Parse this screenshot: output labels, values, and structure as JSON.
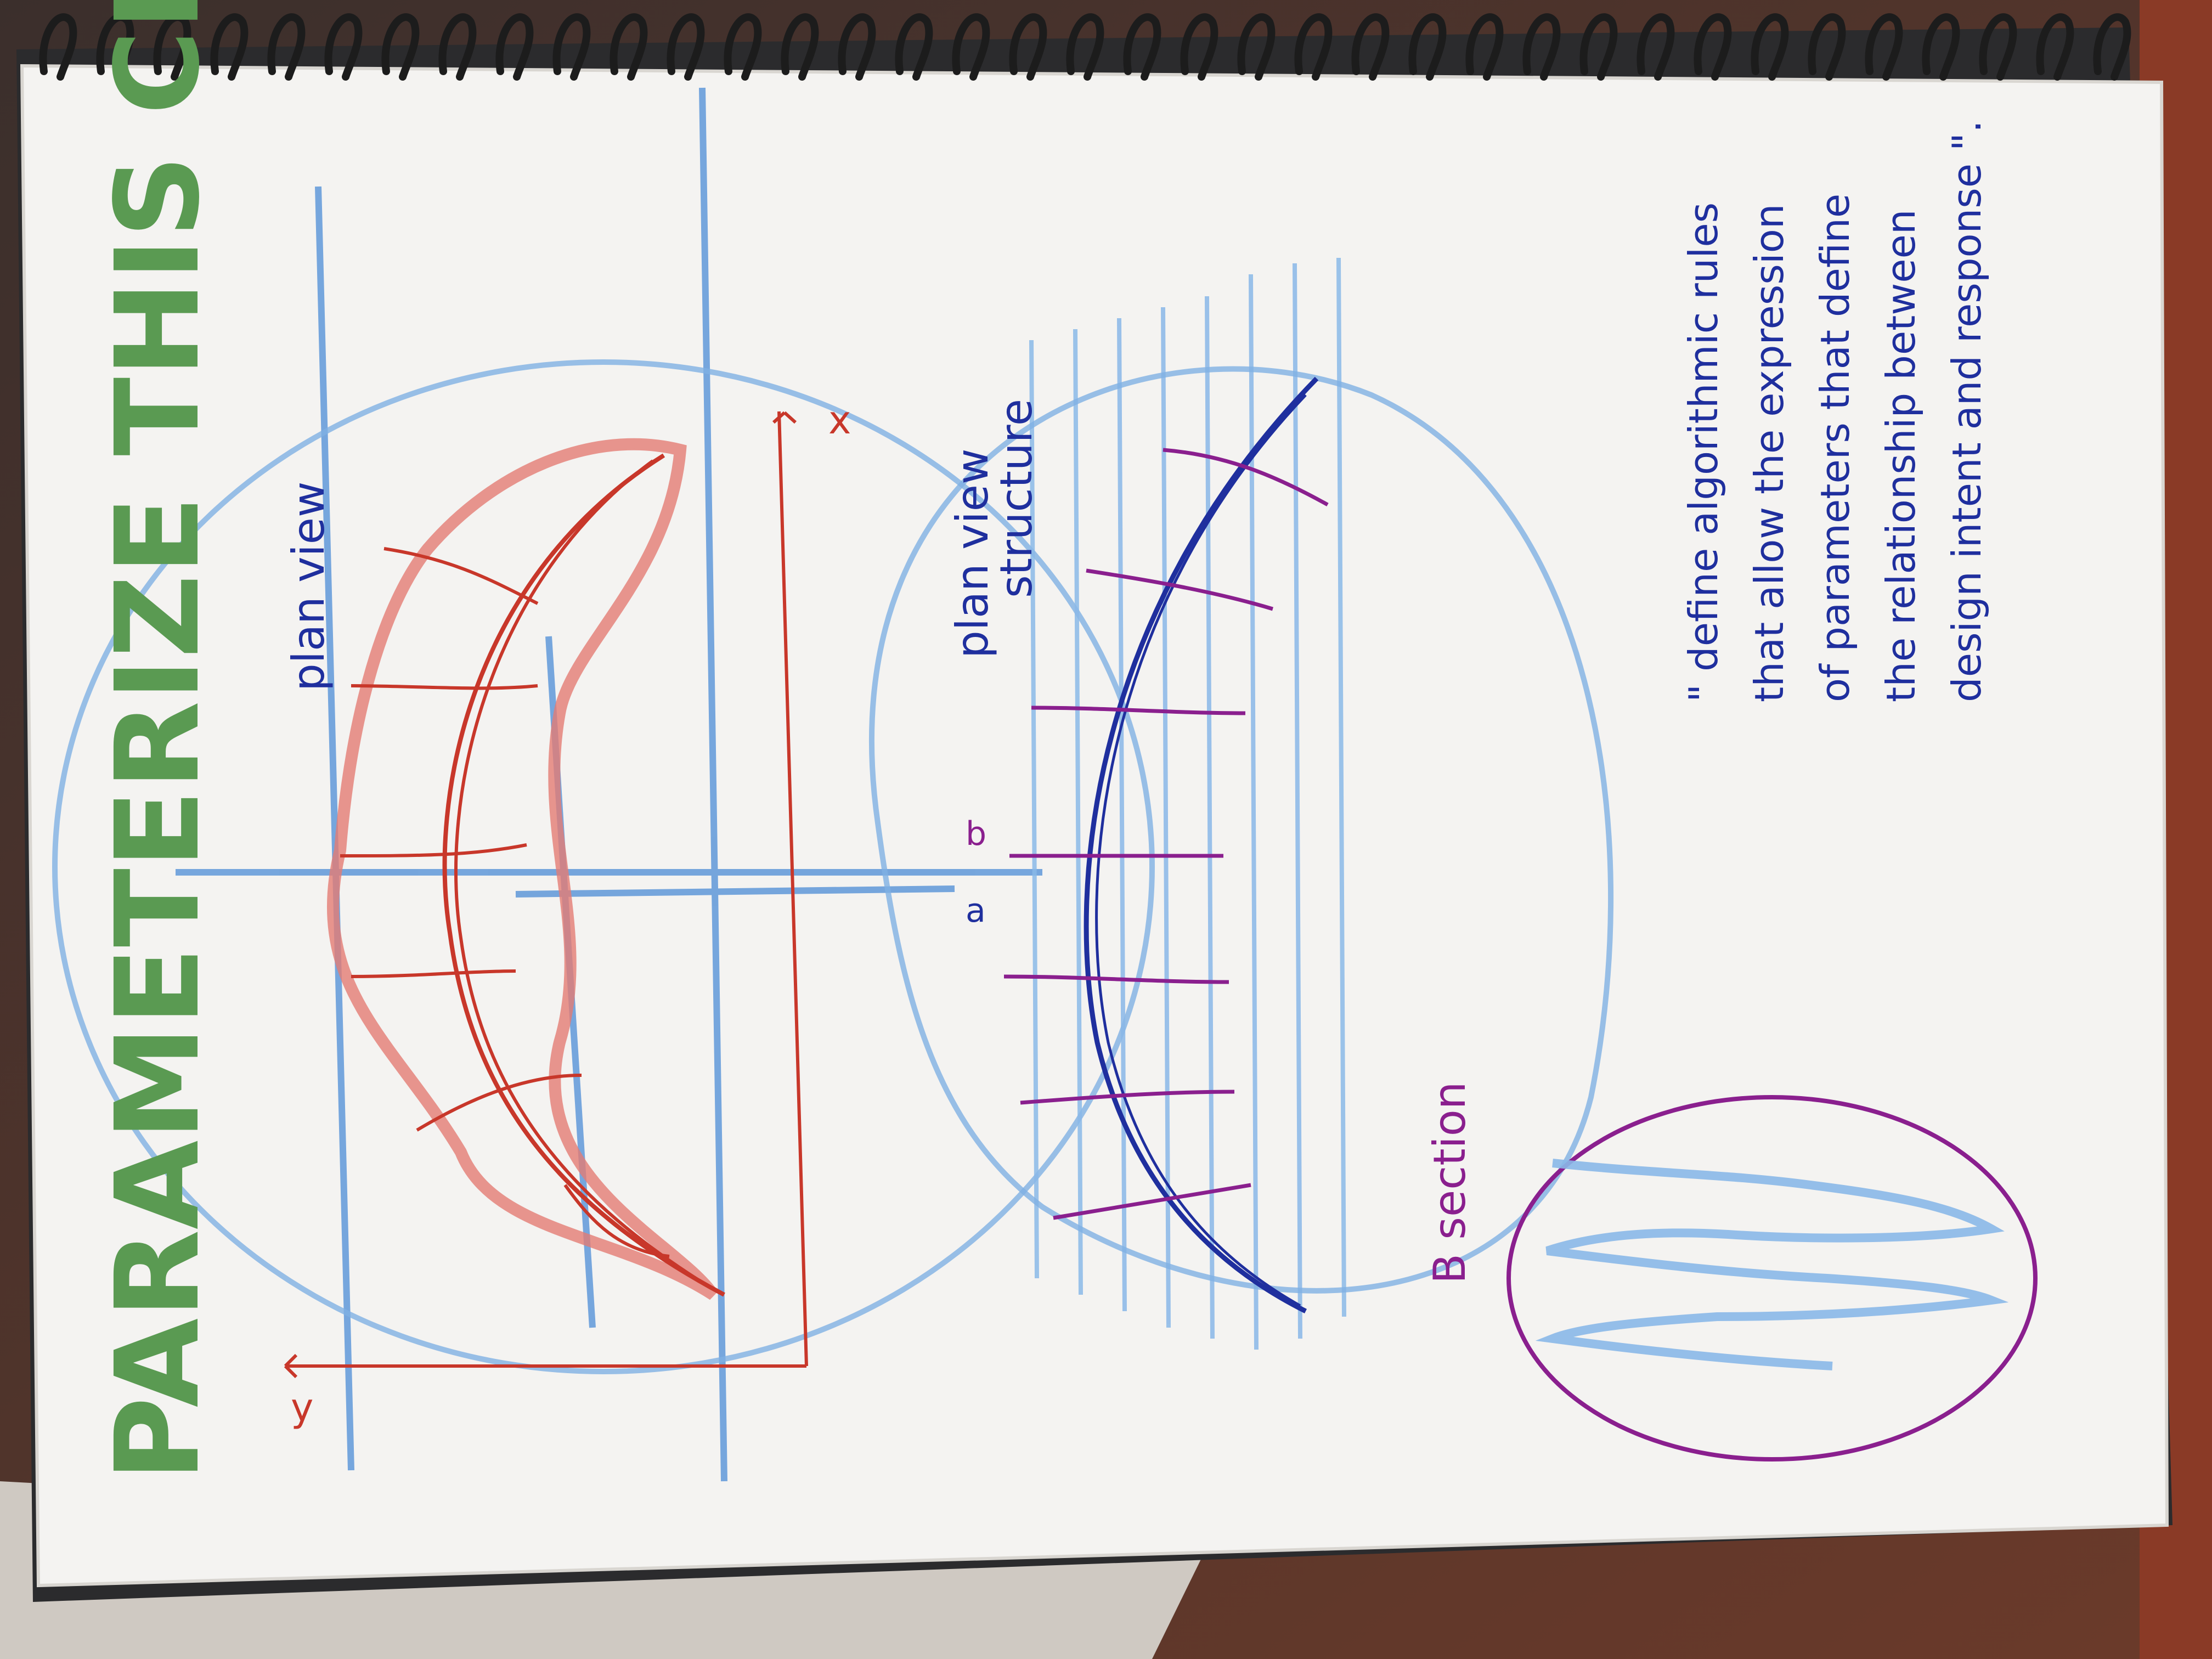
{
  "page": {
    "title": "PARAMETERIZE THIS CROISSANT",
    "colors": {
      "paper": "#f4f3f1",
      "title_green": "#5a9a52",
      "pencil_blue": "#6fa3dc",
      "pen_red": "#c8372a",
      "crayon_red": "#e08a80",
      "pen_navy": "#1f2f9e",
      "pen_purple": "#8a1f8e",
      "spiral_wire": "#1c1c1c"
    }
  },
  "labels": {
    "plan_view": "plan view",
    "plan_view_structure_1": "plan view",
    "plan_view_structure_2": "structure",
    "section": "B section",
    "axis_x": "x",
    "axis_y": "y",
    "marker_a": "a",
    "marker_b": "b"
  },
  "quote": {
    "lines": [
      "\" define algorithmic rules",
      "that allow the expression",
      "of parameters that define",
      "the relationship between",
      "design intent and response \"."
    ]
  }
}
